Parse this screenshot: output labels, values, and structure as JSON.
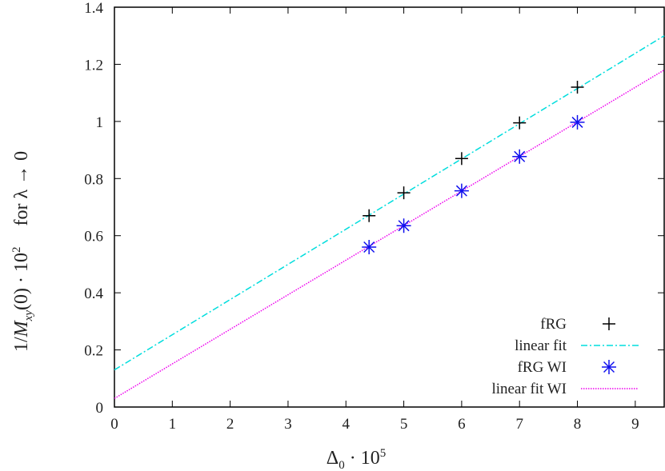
{
  "chart_data": {
    "type": "scatter",
    "title": "",
    "xlabel": "Δ0 · 10^5",
    "ylabel": "1/Mxy(0) · 10^2    for λ → 0",
    "xlim": [
      0,
      9.5
    ],
    "ylim": [
      0,
      1.4
    ],
    "xticks": [
      "0",
      "1",
      "2",
      "3",
      "4",
      "5",
      "6",
      "7",
      "8",
      "9"
    ],
    "yticks": [
      "0",
      "0.2",
      "0.4",
      "0.6",
      "0.8",
      "1",
      "1.2",
      "1.4"
    ],
    "grid": false,
    "legend_position": "lower right",
    "series": [
      {
        "name": "fRG",
        "kind": "points",
        "marker": "+",
        "color": "#000000",
        "x": [
          4.4,
          5,
          6,
          7,
          8
        ],
        "y": [
          0.67,
          0.75,
          0.87,
          0.995,
          1.12
        ]
      },
      {
        "name": "linear fit",
        "kind": "line",
        "style": "dash-dot",
        "color": "#00dddd",
        "x": [
          0,
          9.5
        ],
        "y": [
          0.13,
          1.3
        ]
      },
      {
        "name": "fRG WI",
        "kind": "points",
        "marker": "*",
        "color": "#1010ee",
        "x": [
          4.4,
          5,
          6,
          7,
          8
        ],
        "y": [
          0.56,
          0.635,
          0.757,
          0.877,
          0.997
        ]
      },
      {
        "name": "linear fit WI",
        "kind": "line",
        "style": "dotted",
        "color": "#ee00ee",
        "x": [
          0,
          9.5
        ],
        "y": [
          0.03,
          1.18
        ]
      }
    ]
  },
  "labels": {
    "x_title_main": "Δ",
    "x_title_sub": "0",
    "x_title_rest": " · 10",
    "x_title_sup": "5",
    "y_title_a": "1/",
    "y_title_M": "M",
    "y_title_sub": "xy",
    "y_title_b": "(0) · 10",
    "y_title_sup": "2",
    "y_title_c": "for λ → 0",
    "legend": [
      "fRG",
      "linear fit",
      "fRG WI",
      "linear fit WI"
    ]
  }
}
